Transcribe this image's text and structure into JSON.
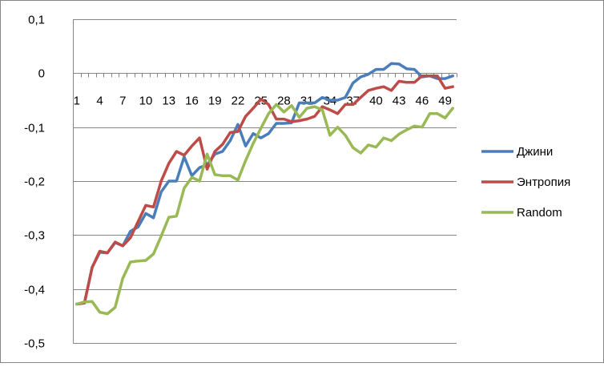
{
  "chart_data": {
    "type": "line",
    "title": "",
    "xlabel": "",
    "ylabel": "",
    "ylim": [
      -0.5,
      0.1
    ],
    "ytick_values": [
      0.1,
      0,
      -0.1,
      -0.2,
      -0.3,
      -0.4,
      -0.5
    ],
    "ytick_labels": [
      "0,1",
      "0",
      "-0,1",
      "-0,2",
      "-0,3",
      "-0,4",
      "-0,5"
    ],
    "x": [
      1,
      2,
      3,
      4,
      5,
      6,
      7,
      8,
      9,
      10,
      11,
      12,
      13,
      14,
      15,
      16,
      17,
      18,
      19,
      20,
      21,
      22,
      23,
      24,
      25,
      26,
      27,
      28,
      29,
      30,
      31,
      32,
      33,
      34,
      35,
      36,
      37,
      38,
      39,
      40,
      41,
      42,
      43,
      44,
      45,
      46,
      47,
      48,
      49,
      50
    ],
    "xtick_labels": [
      "1",
      "4",
      "7",
      "10",
      "13",
      "16",
      "19",
      "22",
      "25",
      "28",
      "31",
      "34",
      "37",
      "40",
      "43",
      "46",
      "49"
    ],
    "xtick_values": [
      1,
      4,
      7,
      10,
      13,
      16,
      19,
      22,
      25,
      28,
      31,
      34,
      37,
      40,
      43,
      46,
      49
    ],
    "grid": "horizontal",
    "legend_position": "right",
    "series": [
      {
        "name": "Джини",
        "color": "#4a7ebb",
        "values": [
          -0.428,
          -0.426,
          -0.36,
          -0.332,
          -0.333,
          -0.314,
          -0.32,
          -0.293,
          -0.285,
          -0.26,
          -0.268,
          -0.22,
          -0.2,
          -0.2,
          -0.155,
          -0.19,
          -0.175,
          -0.17,
          -0.15,
          -0.145,
          -0.125,
          -0.095,
          -0.135,
          -0.112,
          -0.12,
          -0.112,
          -0.093,
          -0.093,
          -0.092,
          -0.055,
          -0.055,
          -0.055,
          -0.045,
          -0.05,
          -0.05,
          -0.045,
          -0.018,
          -0.007,
          -0.002,
          0.007,
          0.007,
          0.018,
          0.017,
          0.008,
          0.007,
          -0.007,
          -0.005,
          -0.01,
          -0.01,
          -0.005
        ]
      },
      {
        "name": "Энтропия",
        "color": "#be4b48",
        "values": [
          -0.428,
          -0.426,
          -0.36,
          -0.33,
          -0.333,
          -0.313,
          -0.32,
          -0.305,
          -0.275,
          -0.245,
          -0.248,
          -0.2,
          -0.167,
          -0.145,
          -0.152,
          -0.135,
          -0.12,
          -0.178,
          -0.145,
          -0.132,
          -0.11,
          -0.108,
          -0.08,
          -0.065,
          -0.048,
          -0.058,
          -0.085,
          -0.085,
          -0.09,
          -0.088,
          -0.085,
          -0.08,
          -0.062,
          -0.068,
          -0.075,
          -0.058,
          -0.058,
          -0.045,
          -0.032,
          -0.028,
          -0.025,
          -0.032,
          -0.015,
          -0.017,
          -0.017,
          -0.005,
          -0.005,
          -0.005,
          -0.028,
          -0.025
        ]
      },
      {
        "name": "Random",
        "color": "#98b954",
        "values": [
          -0.428,
          -0.424,
          -0.423,
          -0.443,
          -0.446,
          -0.434,
          -0.38,
          -0.35,
          -0.348,
          -0.347,
          -0.335,
          -0.302,
          -0.267,
          -0.265,
          -0.213,
          -0.193,
          -0.2,
          -0.15,
          -0.188,
          -0.19,
          -0.19,
          -0.198,
          -0.162,
          -0.13,
          -0.102,
          -0.075,
          -0.058,
          -0.072,
          -0.06,
          -0.082,
          -0.065,
          -0.062,
          -0.068,
          -0.115,
          -0.1,
          -0.115,
          -0.138,
          -0.148,
          -0.133,
          -0.137,
          -0.12,
          -0.125,
          -0.113,
          -0.105,
          -0.098,
          -0.1,
          -0.075,
          -0.075,
          -0.083,
          -0.065
        ]
      }
    ]
  }
}
